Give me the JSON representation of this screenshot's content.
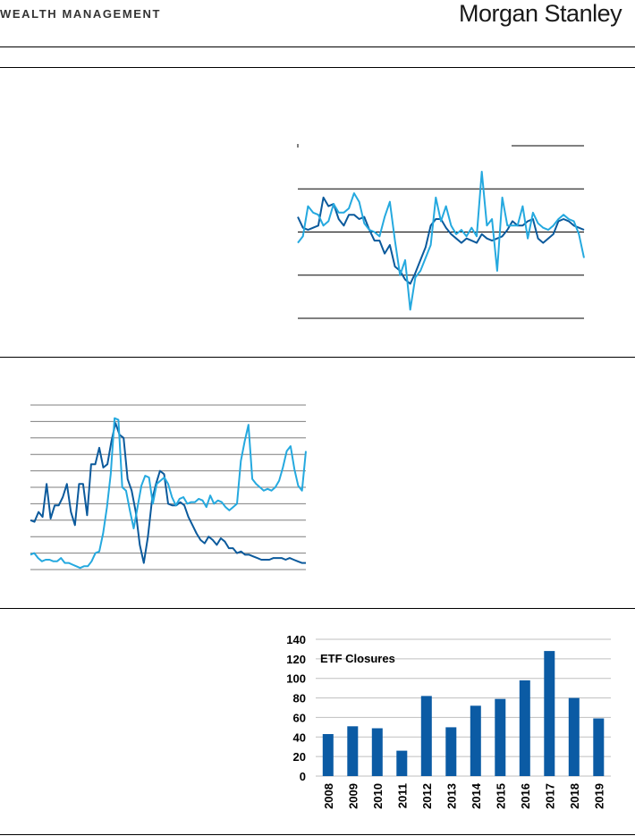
{
  "header": {
    "wealth_management": "WEALTH MANAGEMENT",
    "brand": "Morgan Stanley"
  },
  "colors": {
    "dark_blue": "#0b5a9c",
    "light_blue": "#25a9df",
    "bar_blue": "#0b5ba4",
    "grid": "#7f7f7f"
  },
  "chart_data": [
    {
      "type": "line",
      "title": "",
      "xlabel": "",
      "ylabel": "",
      "grid": true,
      "legend": "top-right",
      "ylim": [
        -4,
        4
      ],
      "series": [
        {
          "name": "",
          "color": "#0b5a9c",
          "values": [
            0.7,
            0.2,
            0.1,
            0.2,
            0.3,
            1.6,
            1.2,
            1.3,
            0.6,
            0.3,
            0.8,
            0.8,
            0.6,
            0.7,
            0.1,
            -0.4,
            -0.4,
            -1.0,
            -0.6,
            -1.6,
            -1.8,
            -2.2,
            -2.4,
            -1.9,
            -1.3,
            -0.7,
            0.3,
            0.6,
            0.6,
            0.2,
            -0.1,
            -0.3,
            -0.5,
            -0.3,
            -0.4,
            -0.5,
            -0.1,
            -0.3,
            -0.4,
            -0.3,
            -0.2,
            0.1,
            0.5,
            0.3,
            0.3,
            0.5,
            0.6,
            -0.3,
            -0.5,
            -0.3,
            -0.1,
            0.5,
            0.6,
            0.5,
            0.3,
            0.2,
            0.1
          ]
        },
        {
          "name": "",
          "color": "#25a9df",
          "values": [
            -0.5,
            -0.2,
            1.2,
            0.9,
            0.8,
            0.3,
            0.5,
            1.3,
            0.9,
            0.9,
            1.1,
            1.8,
            1.4,
            0.4,
            0.1,
            0.0,
            -0.2,
            0.7,
            1.4,
            -0.4,
            -2.0,
            -1.3,
            -3.6,
            -2.1,
            -1.8,
            -1.2,
            -0.6,
            1.6,
            0.5,
            1.2,
            0.3,
            -0.1,
            0.1,
            -0.2,
            0.2,
            -0.2,
            2.8,
            0.3,
            0.6,
            -1.8,
            1.6,
            0.3,
            0.3,
            0.3,
            1.2,
            -0.3,
            0.9,
            0.4,
            0.2,
            0.1,
            0.3,
            0.6,
            0.8,
            0.6,
            0.5,
            -0.1,
            -1.2
          ]
        }
      ]
    },
    {
      "type": "line",
      "title": "",
      "xlabel": "",
      "ylabel": "",
      "grid": true,
      "ylim": [
        0,
        100
      ],
      "series": [
        {
          "name": "",
          "color": "#0b5a9c",
          "values": [
            30,
            29,
            35,
            32,
            52,
            31,
            39,
            39,
            44,
            52,
            35,
            27,
            52,
            52,
            33,
            64,
            64,
            74,
            62,
            64,
            78,
            89,
            82,
            80,
            55,
            48,
            35,
            15,
            4,
            20,
            42,
            52,
            60,
            58,
            40,
            39,
            39,
            41,
            39,
            32,
            27,
            22,
            18,
            16,
            20,
            18,
            15,
            19,
            17,
            13,
            13,
            10,
            11,
            9,
            9,
            8,
            7,
            6,
            6,
            6,
            7,
            7,
            7,
            6,
            7,
            6,
            5,
            4,
            4
          ]
        },
        {
          "name": "",
          "color": "#25a9df",
          "values": [
            9,
            10,
            7,
            5,
            6,
            6,
            5,
            5,
            7,
            4,
            4,
            3,
            2,
            1,
            2,
            2,
            5,
            10,
            11,
            22,
            38,
            58,
            92,
            91,
            50,
            48,
            36,
            25,
            38,
            51,
            57,
            56,
            40,
            52,
            54,
            56,
            52,
            44,
            39,
            43,
            44,
            40,
            41,
            41,
            43,
            42,
            38,
            45,
            40,
            42,
            41,
            38,
            36,
            38,
            40,
            66,
            78,
            88,
            55,
            52,
            50,
            48,
            49,
            48,
            50,
            54,
            62,
            72,
            75,
            61,
            51,
            48,
            72
          ]
        }
      ]
    },
    {
      "type": "bar",
      "title": "",
      "xlabel": "",
      "ylabel": "",
      "grid": true,
      "ylim": [
        0,
        140
      ],
      "yticks": [
        0,
        20,
        40,
        60,
        80,
        100,
        120,
        140
      ],
      "annotation": "ETF Closures",
      "categories": [
        "2008",
        "2009",
        "2010",
        "2011",
        "2012",
        "2013",
        "2014",
        "2015",
        "2016",
        "2017",
        "2018",
        "2019"
      ],
      "values": [
        43,
        51,
        49,
        26,
        82,
        50,
        72,
        79,
        98,
        128,
        80,
        59
      ]
    }
  ]
}
